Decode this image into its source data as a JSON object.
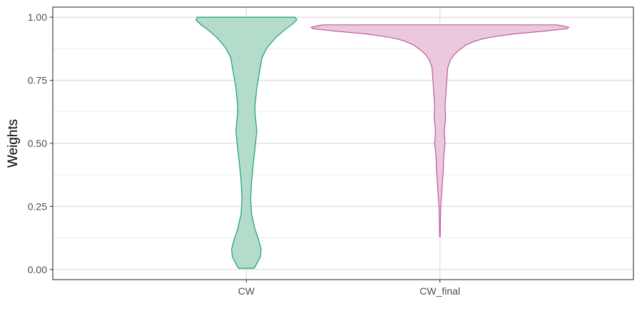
{
  "chart_data": {
    "type": "violin",
    "title": "",
    "xlabel": "",
    "ylabel": "Weights",
    "ylim": [
      -0.04,
      1.04
    ],
    "yticks": [
      0.0,
      0.25,
      0.5,
      0.75,
      1.0
    ],
    "ytick_labels": [
      "0.00",
      "0.25",
      "0.50",
      "0.75",
      "1.00"
    ],
    "categories": [
      "CW",
      "CW_final"
    ],
    "grid": true,
    "legend": "none",
    "series": [
      {
        "category": "CW",
        "fill": "#b3dccb",
        "stroke": "#1b9e77",
        "min": 0.005,
        "max": 1.0,
        "profile": [
          [
            1.0,
            0.28
          ],
          [
            0.99,
            0.29
          ],
          [
            0.97,
            0.26
          ],
          [
            0.95,
            0.22
          ],
          [
            0.92,
            0.17
          ],
          [
            0.88,
            0.12
          ],
          [
            0.84,
            0.09
          ],
          [
            0.8,
            0.08
          ],
          [
            0.72,
            0.06
          ],
          [
            0.65,
            0.05
          ],
          [
            0.62,
            0.05
          ],
          [
            0.55,
            0.06
          ],
          [
            0.48,
            0.05
          ],
          [
            0.42,
            0.04
          ],
          [
            0.35,
            0.03
          ],
          [
            0.28,
            0.025
          ],
          [
            0.22,
            0.03
          ],
          [
            0.16,
            0.05
          ],
          [
            0.12,
            0.07
          ],
          [
            0.08,
            0.085
          ],
          [
            0.05,
            0.08
          ],
          [
            0.03,
            0.065
          ],
          [
            0.01,
            0.05
          ],
          [
            0.005,
            0.045
          ]
        ]
      },
      {
        "category": "CW_final",
        "fill": "#ebc9dd",
        "stroke": "#c0589d",
        "min": 0.13,
        "max": 0.97,
        "profile": [
          [
            0.97,
            0.67
          ],
          [
            0.965,
            0.71
          ],
          [
            0.96,
            0.74
          ],
          [
            0.955,
            0.73
          ],
          [
            0.95,
            0.67
          ],
          [
            0.945,
            0.6
          ],
          [
            0.94,
            0.52
          ],
          [
            0.935,
            0.44
          ],
          [
            0.925,
            0.33
          ],
          [
            0.915,
            0.25
          ],
          [
            0.905,
            0.2
          ],
          [
            0.89,
            0.15
          ],
          [
            0.87,
            0.11
          ],
          [
            0.85,
            0.08
          ],
          [
            0.83,
            0.06
          ],
          [
            0.8,
            0.045
          ],
          [
            0.75,
            0.04
          ],
          [
            0.7,
            0.035
          ],
          [
            0.65,
            0.03
          ],
          [
            0.6,
            0.033
          ],
          [
            0.55,
            0.025
          ],
          [
            0.5,
            0.03
          ],
          [
            0.45,
            0.022
          ],
          [
            0.4,
            0.02
          ],
          [
            0.35,
            0.015
          ],
          [
            0.3,
            0.01
          ],
          [
            0.25,
            0.005
          ],
          [
            0.2,
            0.003
          ],
          [
            0.15,
            0.002
          ],
          [
            0.13,
            0.002
          ]
        ]
      }
    ]
  }
}
